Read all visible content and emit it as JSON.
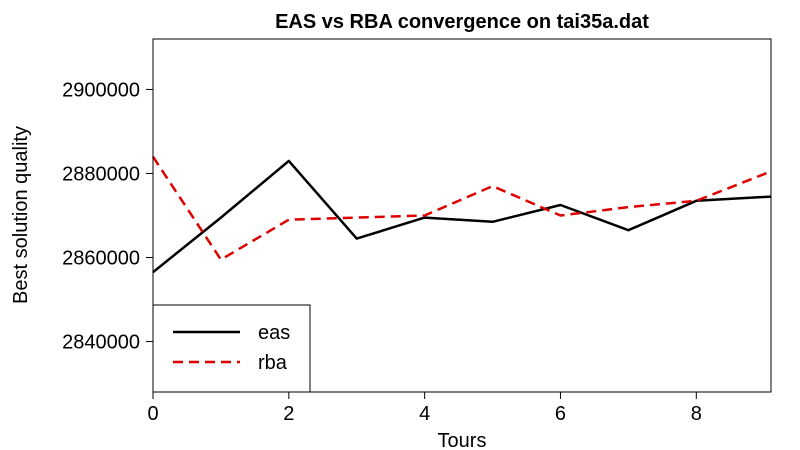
{
  "chart_data": {
    "type": "line",
    "title": "EAS vs RBA convergence on tai35a.dat",
    "xlabel": "Tours",
    "ylabel": "Best solution quality",
    "xlim": [
      0,
      9.1
    ],
    "ylim": [
      2828000,
      2912000
    ],
    "xticks": [
      0,
      2,
      4,
      6,
      8
    ],
    "yticks": [
      2840000,
      2860000,
      2880000,
      2900000
    ],
    "grid": false,
    "legend_position": "bottom-left",
    "series": [
      {
        "name": "eas",
        "color": "#000000",
        "dash": "solid",
        "x": [
          0,
          1,
          2,
          3,
          4,
          5,
          6,
          7,
          8,
          9.1
        ],
        "y": [
          2856500,
          2869500,
          2883000,
          2864500,
          2869500,
          2868500,
          2872500,
          2866500,
          2873500,
          2874500
        ]
      },
      {
        "name": "rba",
        "color": "#dd0000",
        "dash": "dashed",
        "x": [
          0,
          1,
          2,
          3,
          4,
          5,
          6,
          7,
          8,
          9.1
        ],
        "y": [
          2884000,
          2859500,
          2869000,
          2869500,
          2870000,
          2877000,
          2870000,
          2872000,
          2873500,
          2880500
        ]
      }
    ]
  }
}
